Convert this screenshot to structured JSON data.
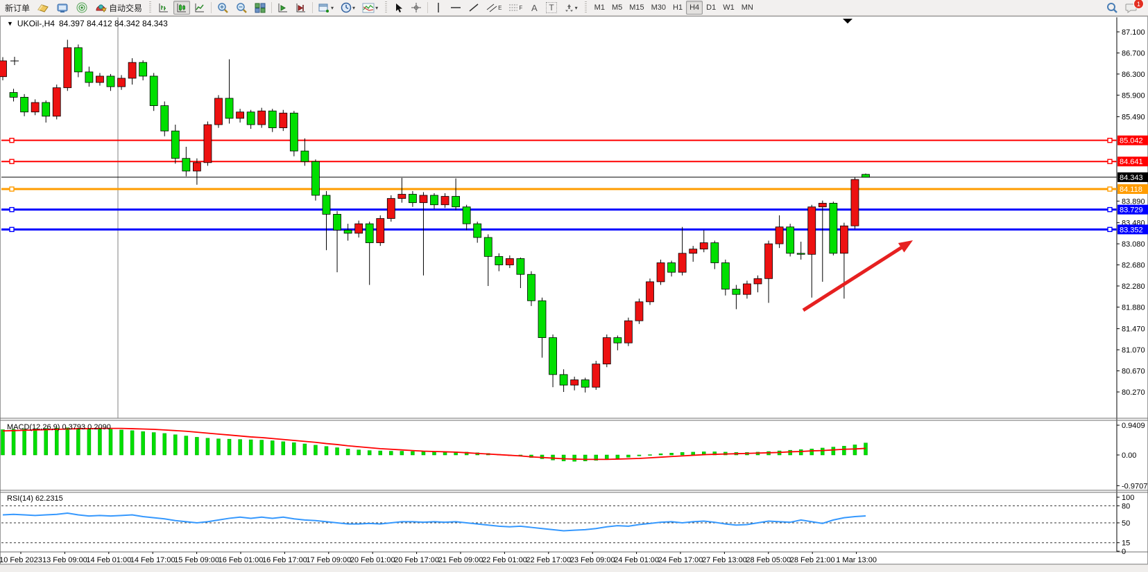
{
  "toolbar": {
    "new_order_label": "新订单",
    "auto_trading_label": "自动交易",
    "letters": {
      "channel": "E",
      "fibonacci": "F",
      "text": "A",
      "label": "T"
    },
    "timeframes": [
      "M1",
      "M5",
      "M15",
      "M30",
      "H1",
      "H4",
      "D1",
      "W1",
      "MN"
    ],
    "selected_timeframe": "H4",
    "notification_count": "1"
  },
  "chart": {
    "title": "UKOil-,H4",
    "ohlc_text": "84.397 84.412 84.342 84.343"
  },
  "chart_data": {
    "type": "candlestick",
    "symbol": "UKOil-",
    "timeframe": "H4",
    "title": "UKOil-,H4 84.397 84.412 84.342 84.343",
    "bull_color": "#ED1111",
    "bear_color": "#00DF00",
    "ylim": [
      80.27,
      87.1
    ],
    "price_axis_ticks": [
      "87.100",
      "86.700",
      "86.300",
      "85.900",
      "85.490",
      "83.890",
      "83.480",
      "83.080",
      "82.680",
      "82.280",
      "81.880",
      "81.470",
      "81.070",
      "80.670",
      "80.270"
    ],
    "time_labels": [
      "10 Feb 2023",
      "13 Feb 09:00",
      "14 Feb 01:00",
      "14 Feb 17:00",
      "15 Feb 09:00",
      "16 Feb 01:00",
      "16 Feb 17:00",
      "17 Feb 09:00",
      "20 Feb 01:00",
      "20 Feb 17:00",
      "21 Feb 09:00",
      "22 Feb 01:00",
      "22 Feb 17:00",
      "23 Feb 09:00",
      "24 Feb 01:00",
      "24 Feb 17:00",
      "27 Feb 13:00",
      "28 Feb 05:00",
      "28 Feb 21:00",
      "1 Mar 13:00"
    ],
    "candles": [
      [
        86.25,
        86.62,
        86.18,
        86.55
      ],
      [
        85.95,
        86.02,
        85.78,
        85.86
      ],
      [
        85.86,
        85.92,
        85.5,
        85.58
      ],
      [
        85.58,
        85.82,
        85.52,
        85.76
      ],
      [
        85.76,
        85.8,
        85.38,
        85.5
      ],
      [
        85.5,
        86.1,
        85.44,
        86.04
      ],
      [
        86.04,
        86.95,
        85.98,
        86.8
      ],
      [
        86.8,
        86.86,
        86.24,
        86.34
      ],
      [
        86.34,
        86.44,
        86.06,
        86.14
      ],
      [
        86.14,
        86.32,
        86.08,
        86.26
      ],
      [
        86.26,
        86.3,
        85.98,
        86.06
      ],
      [
        86.06,
        86.28,
        86.0,
        86.22
      ],
      [
        86.22,
        86.6,
        86.1,
        86.52
      ],
      [
        86.52,
        86.56,
        86.18,
        86.26
      ],
      [
        86.26,
        86.32,
        85.6,
        85.7
      ],
      [
        85.7,
        85.78,
        85.12,
        85.22
      ],
      [
        85.22,
        85.34,
        84.6,
        84.7
      ],
      [
        84.7,
        84.92,
        84.36,
        84.46
      ],
      [
        84.46,
        84.7,
        84.2,
        84.62
      ],
      [
        84.62,
        85.4,
        84.56,
        85.34
      ],
      [
        85.34,
        85.9,
        85.28,
        85.84
      ],
      [
        85.84,
        86.58,
        85.36,
        85.46
      ],
      [
        85.46,
        85.64,
        85.38,
        85.58
      ],
      [
        85.58,
        85.62,
        85.26,
        85.34
      ],
      [
        85.34,
        85.66,
        85.28,
        85.6
      ],
      [
        85.6,
        85.64,
        85.2,
        85.28
      ],
      [
        85.28,
        85.62,
        85.22,
        85.56
      ],
      [
        85.56,
        85.6,
        84.74,
        84.84
      ],
      [
        84.84,
        85.08,
        84.56,
        84.64
      ],
      [
        84.64,
        84.68,
        83.9,
        84.0
      ],
      [
        84.0,
        84.08,
        82.96,
        83.64
      ],
      [
        83.64,
        83.7,
        82.54,
        83.34
      ],
      [
        83.34,
        83.46,
        83.14,
        83.28
      ],
      [
        83.28,
        83.52,
        83.2,
        83.46
      ],
      [
        83.46,
        83.5,
        82.3,
        83.1
      ],
      [
        83.1,
        83.62,
        83.04,
        83.56
      ],
      [
        83.56,
        84.0,
        83.5,
        83.94
      ],
      [
        83.94,
        84.33,
        83.86,
        84.02
      ],
      [
        84.02,
        84.08,
        83.78,
        83.86
      ],
      [
        83.86,
        84.06,
        82.48,
        84.0
      ],
      [
        84.0,
        84.04,
        83.74,
        83.82
      ],
      [
        83.82,
        84.04,
        83.76,
        83.98
      ],
      [
        83.98,
        84.32,
        83.72,
        83.78
      ],
      [
        83.78,
        83.82,
        83.34,
        83.46
      ],
      [
        83.46,
        83.5,
        83.1,
        83.2
      ],
      [
        83.2,
        83.26,
        82.28,
        82.84
      ],
      [
        82.84,
        82.9,
        82.56,
        82.68
      ],
      [
        82.68,
        82.86,
        82.62,
        82.8
      ],
      [
        82.8,
        82.82,
        82.24,
        82.5
      ],
      [
        82.5,
        82.56,
        81.9,
        82.0
      ],
      [
        82.0,
        82.06,
        80.92,
        81.3
      ],
      [
        81.3,
        81.36,
        80.36,
        80.6
      ],
      [
        80.6,
        80.7,
        80.27,
        80.4
      ],
      [
        80.4,
        80.56,
        80.3,
        80.5
      ],
      [
        80.5,
        80.54,
        80.26,
        80.36
      ],
      [
        80.36,
        80.86,
        80.31,
        80.8
      ],
      [
        80.8,
        81.36,
        80.74,
        81.3
      ],
      [
        81.3,
        81.34,
        81.06,
        81.2
      ],
      [
        81.2,
        81.68,
        81.14,
        81.62
      ],
      [
        81.62,
        82.04,
        81.56,
        81.98
      ],
      [
        81.98,
        82.42,
        81.92,
        82.36
      ],
      [
        82.36,
        82.78,
        82.3,
        82.72
      ],
      [
        82.72,
        82.76,
        82.46,
        82.54
      ],
      [
        82.54,
        83.4,
        82.48,
        82.9
      ],
      [
        82.9,
        83.04,
        82.74,
        82.98
      ],
      [
        82.98,
        83.34,
        82.92,
        83.1
      ],
      [
        83.1,
        83.14,
        82.6,
        82.72
      ],
      [
        82.72,
        82.78,
        82.1,
        82.22
      ],
      [
        82.22,
        82.3,
        81.84,
        82.12
      ],
      [
        82.12,
        82.38,
        82.04,
        82.32
      ],
      [
        82.32,
        82.48,
        82.16,
        82.42
      ],
      [
        82.42,
        83.14,
        81.96,
        83.08
      ],
      [
        83.08,
        83.62,
        83.0,
        83.4
      ],
      [
        83.4,
        83.46,
        82.84,
        82.9
      ],
      [
        82.9,
        83.12,
        82.78,
        82.88
      ],
      [
        82.88,
        83.82,
        82.06,
        83.78
      ],
      [
        83.78,
        83.9,
        82.36,
        83.85
      ],
      [
        83.85,
        83.88,
        82.86,
        82.9
      ],
      [
        82.9,
        83.48,
        82.04,
        83.42
      ],
      [
        83.42,
        84.34,
        83.36,
        84.3
      ],
      [
        84.397,
        84.412,
        84.342,
        84.343
      ]
    ],
    "hlines": [
      {
        "price": 85.042,
        "label": "85.042",
        "color": "#FF0000",
        "width": 2
      },
      {
        "price": 84.641,
        "label": "84.641",
        "color": "#FF0000",
        "width": 2
      },
      {
        "price": 84.343,
        "label": "84.343",
        "color": "#000000",
        "width": 1,
        "is_price_line": true
      },
      {
        "price": 84.118,
        "label": "84.118",
        "color": "#FF9C00",
        "width": 3
      },
      {
        "price": 83.729,
        "label": "83.729",
        "color": "#0000FF",
        "width": 3
      },
      {
        "price": 83.352,
        "label": "83.352",
        "color": "#0000FF",
        "width": 3
      }
    ],
    "annotations": {
      "arrow": {
        "from": [
          1158,
          425
        ],
        "to": [
          1316,
          324
        ],
        "color": "#E62020"
      },
      "vertical_line_x": 170,
      "crosshair_marker": [
        21,
        65
      ],
      "shift_marker_x": 1222
    },
    "macd": {
      "label": "MACD(12,26,9)",
      "value_text": "0.3793 0.2090",
      "axis_ticks": [
        "0.9409",
        "0.00",
        "-0.9707"
      ],
      "ylim": [
        -0.9707,
        0.9409
      ],
      "hist_color": "#00DF00",
      "signal_color": "#FF0000",
      "histogram": [
        0.8,
        0.81,
        0.82,
        0.83,
        0.84,
        0.85,
        0.86,
        0.85,
        0.84,
        0.83,
        0.81,
        0.79,
        0.77,
        0.74,
        0.71,
        0.68,
        0.64,
        0.6,
        0.56,
        0.53,
        0.51,
        0.5,
        0.49,
        0.48,
        0.47,
        0.45,
        0.42,
        0.39,
        0.35,
        0.31,
        0.27,
        0.23,
        0.19,
        0.16,
        0.14,
        0.13,
        0.12,
        0.12,
        0.11,
        0.11,
        0.11,
        0.11,
        0.1,
        0.09,
        0.07,
        0.05,
        0.02,
        -0.01,
        -0.04,
        -0.08,
        -0.12,
        -0.16,
        -0.19,
        -0.2,
        -0.19,
        -0.17,
        -0.14,
        -0.11,
        -0.07,
        -0.03,
        0.01,
        0.04,
        0.06,
        0.08,
        0.09,
        0.1,
        0.1,
        0.09,
        0.08,
        0.08,
        0.09,
        0.11,
        0.13,
        0.15,
        0.17,
        0.19,
        0.22,
        0.25,
        0.28,
        0.32,
        0.3793
      ],
      "signal": [
        0.76,
        0.77,
        0.78,
        0.79,
        0.8,
        0.81,
        0.82,
        0.83,
        0.83,
        0.84,
        0.84,
        0.84,
        0.83,
        0.82,
        0.81,
        0.79,
        0.77,
        0.75,
        0.72,
        0.69,
        0.66,
        0.63,
        0.6,
        0.57,
        0.55,
        0.52,
        0.49,
        0.46,
        0.43,
        0.4,
        0.36,
        0.33,
        0.29,
        0.26,
        0.23,
        0.2,
        0.18,
        0.16,
        0.14,
        0.12,
        0.11,
        0.1,
        0.09,
        0.07,
        0.05,
        0.03,
        0.01,
        -0.01,
        -0.03,
        -0.06,
        -0.08,
        -0.1,
        -0.12,
        -0.13,
        -0.14,
        -0.14,
        -0.14,
        -0.13,
        -0.12,
        -0.11,
        -0.09,
        -0.07,
        -0.05,
        -0.03,
        -0.01,
        0.01,
        0.02,
        0.03,
        0.04,
        0.05,
        0.06,
        0.07,
        0.08,
        0.1,
        0.11,
        0.13,
        0.14,
        0.16,
        0.18,
        0.19,
        0.209
      ]
    },
    "rsi": {
      "label": "RSI(14)",
      "value_text": "62.2315",
      "axis_ticks": [
        "100",
        "80",
        "50",
        "15",
        "0"
      ],
      "levels": [
        80,
        50,
        15
      ],
      "ylim": [
        0,
        100
      ],
      "color": "#3598FE",
      "values": [
        64,
        65,
        64,
        63,
        64,
        65,
        67,
        64,
        62,
        63,
        62,
        63,
        64,
        61,
        59,
        57,
        54,
        52,
        50,
        52,
        55,
        58,
        60,
        58,
        60,
        58,
        60,
        57,
        55,
        54,
        52,
        50,
        48,
        48,
        49,
        48,
        50,
        52,
        52,
        51,
        52,
        51,
        52,
        50,
        48,
        46,
        44,
        43,
        44,
        42,
        40,
        38,
        36,
        37,
        38,
        40,
        43,
        45,
        44,
        47,
        49,
        51,
        52,
        50,
        52,
        53,
        51,
        48,
        46,
        47,
        50,
        53,
        52,
        51,
        55,
        52,
        49,
        55,
        59,
        61,
        62.23
      ]
    }
  }
}
